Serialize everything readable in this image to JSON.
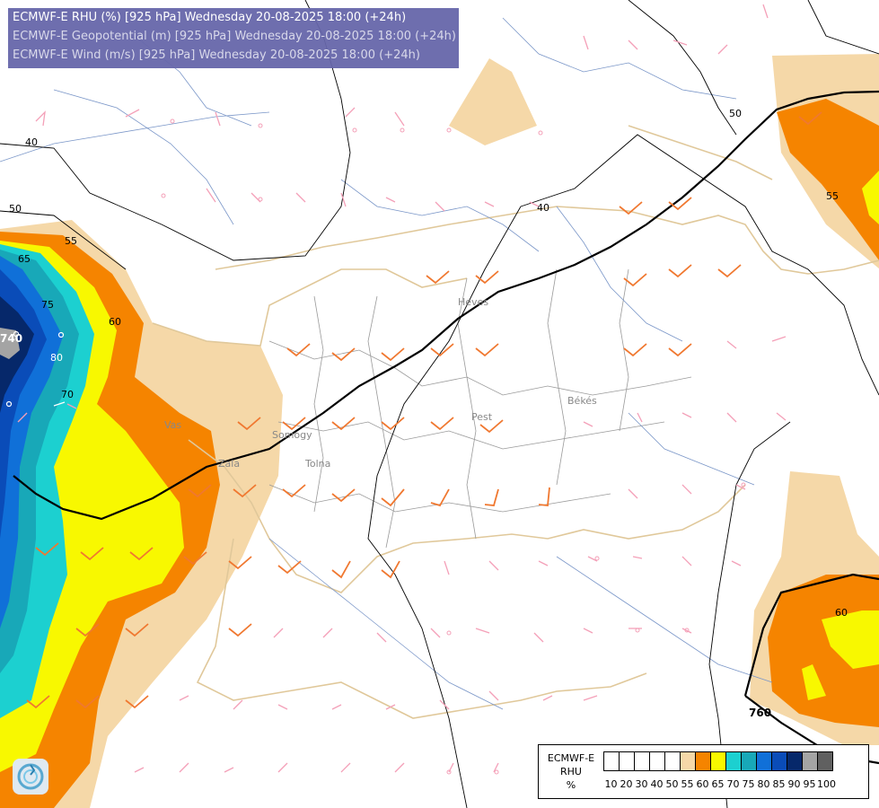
{
  "header": {
    "line1": "ECMWF-E RHU (%) [925 hPa] Wednesday 20-08-2025 18:00 (+24h)",
    "line2": "ECMWF-E Geopotential (m) [925 hPa] Wednesday 20-08-2025 18:00 (+24h)",
    "line3": "ECMWF-E Wind (m/s) [925 hPa] Wednesday 20-08-2025 18:00 (+24h)"
  },
  "legend": {
    "model": "ECMWF-E",
    "variable": "RHU",
    "unit": "%",
    "classes": [
      {
        "label": "10",
        "color": "#ffffff"
      },
      {
        "label": "20",
        "color": "#ffffff"
      },
      {
        "label": "30",
        "color": "#ffffff"
      },
      {
        "label": "40",
        "color": "#ffffff"
      },
      {
        "label": "50",
        "color": "#ffffff"
      },
      {
        "label": "55",
        "color": "#f5d8a8"
      },
      {
        "label": "60",
        "color": "#f58400"
      },
      {
        "label": "65",
        "color": "#f8f800"
      },
      {
        "label": "70",
        "color": "#1cd0d0"
      },
      {
        "label": "75",
        "color": "#18a8b8"
      },
      {
        "label": "80",
        "color": "#1070d8"
      },
      {
        "label": "85",
        "color": "#0a4cb8"
      },
      {
        "label": "90",
        "color": "#06286a"
      },
      {
        "label": "95",
        "color": "#a4a4a4"
      },
      {
        "label": "100",
        "color": "#606060"
      }
    ]
  },
  "map": {
    "contour_labels_rhu": [
      "40",
      "50",
      "55",
      "60",
      "65",
      "70",
      "75",
      "80",
      "40",
      "50",
      "55",
      "60"
    ],
    "contour_labels_geopotential": [
      "740",
      "760"
    ],
    "place_labels": [
      "Vas",
      "Somogy",
      "Tolna",
      "Zala",
      "Pest",
      "Békés",
      "Heves"
    ]
  }
}
